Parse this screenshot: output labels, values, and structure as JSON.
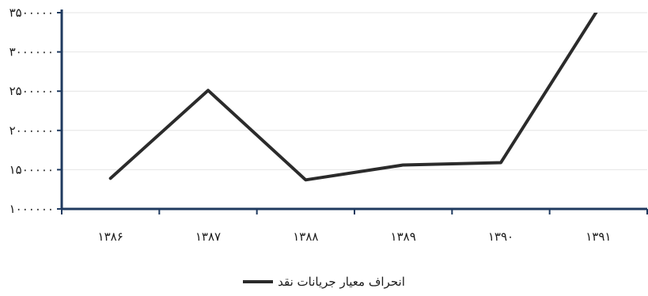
{
  "chart_data": {
    "type": "line",
    "categories": [
      "۱۳۸۶",
      "۱۳۸۷",
      "۱۳۸۸",
      "۱۳۸۹",
      "۱۳۹۰",
      "۱۳۹۱"
    ],
    "series": [
      {
        "name": "انحراف معیار جریانات نقد",
        "values": [
          1390000,
          2510000,
          1370000,
          1560000,
          1590000,
          3550000
        ],
        "color": "#2b2b2b"
      }
    ],
    "yticks": [
      1000000,
      1500000,
      2000000,
      2500000,
      3000000,
      3500000
    ],
    "ytick_labels": [
      "۱۰۰۰۰۰۰",
      "۱۵۰۰۰۰۰",
      "۲۰۰۰۰۰۰",
      "۲۵۰۰۰۰۰",
      "۳۰۰۰۰۰۰",
      "۳۵۰۰۰۰۰"
    ],
    "ylim": [
      1000000,
      3500000
    ],
    "grid": true,
    "legend_position": "bottom-center",
    "axis_color": "#1f3a5f",
    "title": "",
    "xlabel": "",
    "ylabel": ""
  }
}
